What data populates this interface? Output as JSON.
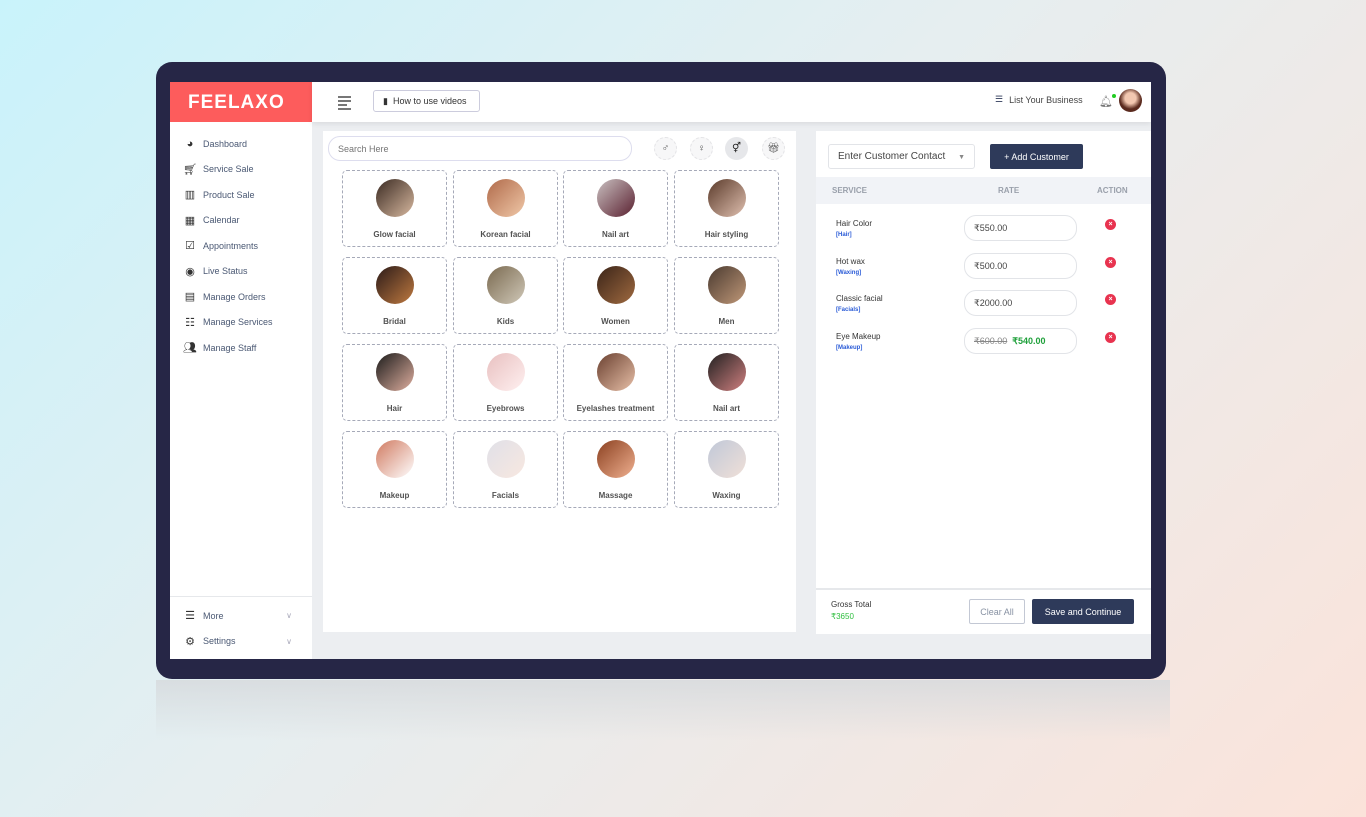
{
  "brand": {
    "logo": "FEELAXO",
    "accent": "#fd5c5c",
    "primary": "#2e3a5a"
  },
  "sidebar": {
    "items": [
      {
        "label": "Dashboard",
        "icon": "gauge-icon"
      },
      {
        "label": "Service Sale",
        "icon": "cart-icon"
      },
      {
        "label": "Product Sale",
        "icon": "luggage-cart-icon"
      },
      {
        "label": "Calendar",
        "icon": "calendar-icon"
      },
      {
        "label": "Appointments",
        "icon": "calendar-check-icon"
      },
      {
        "label": "Live Status",
        "icon": "eye-icon"
      },
      {
        "label": "Manage Orders",
        "icon": "invoice-icon"
      },
      {
        "label": "Manage Services",
        "icon": "list-icon"
      },
      {
        "label": "Manage Staff",
        "icon": "users-icon"
      }
    ],
    "bottom": [
      {
        "label": "More",
        "icon": "menu-icon"
      },
      {
        "label": "Settings",
        "icon": "gear-icon"
      }
    ]
  },
  "topbar": {
    "how_to": "How to use videos",
    "list_business": "List Your Business"
  },
  "search": {
    "placeholder": "Search Here"
  },
  "filters": [
    {
      "icon": "male-icon"
    },
    {
      "icon": "female-icon"
    },
    {
      "icon": "unisex-icon",
      "active": true
    },
    {
      "icon": "gift-icon"
    }
  ],
  "categories": [
    {
      "label": "Glow facial"
    },
    {
      "label": "Korean facial"
    },
    {
      "label": "Nail art"
    },
    {
      "label": "Hair styling"
    },
    {
      "label": "Bridal"
    },
    {
      "label": "Kids"
    },
    {
      "label": "Women"
    },
    {
      "label": "Men"
    },
    {
      "label": "Hair"
    },
    {
      "label": "Eyebrows"
    },
    {
      "label": "Eyelashes treatment"
    },
    {
      "label": "Nail art"
    },
    {
      "label": "Makeup"
    },
    {
      "label": "Facials"
    },
    {
      "label": "Massage"
    },
    {
      "label": "Waxing"
    }
  ],
  "cart": {
    "customer_placeholder": "Enter Customer Contact",
    "add_customer": "+ Add Customer",
    "headers": {
      "service": "SERVICE",
      "rate": "RATE",
      "action": "ACTION"
    },
    "rows": [
      {
        "service": "Hair Color",
        "category": "[Hair]",
        "rate": "₹550.00"
      },
      {
        "service": "Hot wax",
        "category": "[Waxing]",
        "rate": "₹500.00"
      },
      {
        "service": "Classic facial",
        "category": "[Facials]",
        "rate": "₹2000.00"
      },
      {
        "service": "Eye Makeup",
        "category": "[Makeup]",
        "old_rate": "₹600.00",
        "rate": "₹540.00"
      }
    ],
    "gross_total_label": "Gross Total",
    "gross_total": "₹3650",
    "clear_all": "Clear All",
    "save": "Save and Continue"
  }
}
